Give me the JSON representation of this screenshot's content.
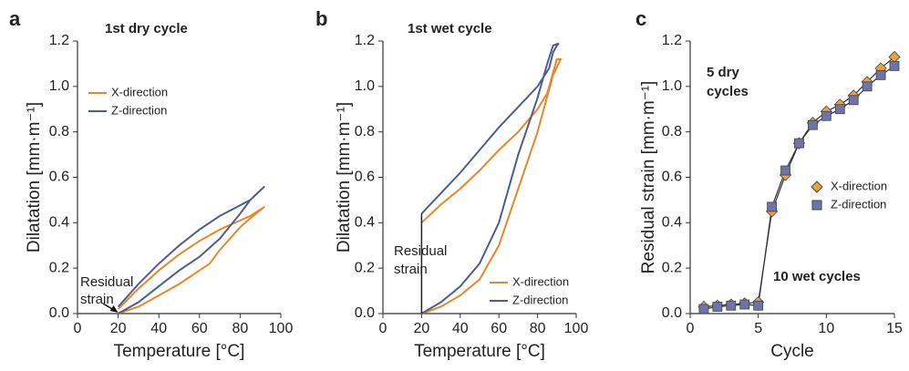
{
  "chart_data": [
    {
      "type": "line",
      "panel_label": "a",
      "annotations": [
        "1st dry cycle",
        "Residual",
        "strain"
      ],
      "xlabel": "Temperature [°C]",
      "ylabel": "Dilatation [mm·m⁻¹]",
      "xlim": [
        0,
        100
      ],
      "xticks": [
        0,
        20,
        40,
        60,
        80,
        100
      ],
      "ylim": [
        0,
        1.2
      ],
      "yticks": [
        {
          "value": 0,
          "label": "0.0"
        },
        0.2,
        0.4,
        0.6,
        0.8,
        {
          "value": 1,
          "label": "1.0"
        },
        1.2
      ],
      "legend": "upper left",
      "series": [
        {
          "name": "X-direction",
          "color": "#e8862a",
          "x": [
            20,
            30,
            40,
            50,
            60,
            65,
            70,
            80,
            85,
            92,
            85,
            70,
            60,
            50,
            40,
            30,
            20
          ],
          "values": [
            0,
            0.03,
            0.08,
            0.13,
            0.19,
            0.22,
            0.28,
            0.38,
            0.42,
            0.47,
            0.43,
            0.37,
            0.32,
            0.26,
            0.19,
            0.11,
            0.02
          ]
        },
        {
          "name": "Z-direction",
          "color": "#4f5b93",
          "x": [
            20,
            30,
            40,
            50,
            60,
            70,
            80,
            85,
            92,
            85,
            70,
            60,
            50,
            40,
            30,
            20
          ],
          "values": [
            0,
            0.05,
            0.12,
            0.19,
            0.25,
            0.33,
            0.44,
            0.5,
            0.56,
            0.5,
            0.43,
            0.37,
            0.3,
            0.22,
            0.13,
            0.03
          ]
        }
      ]
    },
    {
      "type": "line",
      "panel_label": "b",
      "annotations": [
        "1st wet cycle",
        "Residual",
        "strain"
      ],
      "xlabel": "Temperature [°C]",
      "ylabel": "Dilatation [mm·m⁻¹]",
      "xlim": [
        0,
        100
      ],
      "xticks": [
        0,
        20,
        40,
        60,
        80,
        100
      ],
      "ylim": [
        0,
        1.2
      ],
      "yticks": [
        {
          "value": 0,
          "label": "0.0"
        },
        0.2,
        0.4,
        0.6,
        0.8,
        {
          "value": 1,
          "label": "1.0"
        },
        1.2
      ],
      "legend": "lower right",
      "series": [
        {
          "name": "X-direction",
          "color": "#e8862a",
          "x": [
            20,
            30,
            40,
            50,
            60,
            70,
            80,
            88,
            92,
            90,
            85,
            80,
            70,
            60,
            50,
            40,
            30,
            20
          ],
          "values": [
            0,
            0.03,
            0.08,
            0.15,
            0.3,
            0.55,
            0.8,
            1.05,
            1.12,
            1.12,
            0.97,
            0.9,
            0.8,
            0.72,
            0.63,
            0.55,
            0.48,
            0.4
          ]
        },
        {
          "name": "Z-direction",
          "color": "#4f5b93",
          "x": [
            20,
            30,
            40,
            50,
            60,
            70,
            80,
            85,
            88,
            91,
            90,
            88,
            86,
            80,
            70,
            60,
            50,
            40,
            30,
            20
          ],
          "values": [
            0,
            0.05,
            0.12,
            0.22,
            0.4,
            0.7,
            0.95,
            1.1,
            1.18,
            1.19,
            1.18,
            1.15,
            1.08,
            1.0,
            0.91,
            0.82,
            0.72,
            0.62,
            0.53,
            0.44
          ]
        }
      ]
    },
    {
      "type": "line",
      "panel_label": "c",
      "annotations": [
        "5 dry",
        "cycles",
        "10 wet cycles"
      ],
      "xlabel": "Cycle",
      "ylabel": "Residual strain [mm·m⁻¹]",
      "xlim": [
        0,
        15
      ],
      "xticks": [
        0,
        5,
        10,
        15
      ],
      "ylim": [
        0,
        1.2
      ],
      "yticks": [
        {
          "value": 0,
          "label": "0.0"
        },
        0.2,
        0.4,
        0.6,
        0.8,
        {
          "value": 1,
          "label": "1.0"
        },
        1.2
      ],
      "legend": "center right",
      "series": [
        {
          "name": "X-direction",
          "color": "#e8a33a",
          "marker": "diamond",
          "x": [
            1,
            2,
            3,
            4,
            5,
            6,
            7,
            8,
            9,
            10,
            11,
            12,
            13,
            14,
            15
          ],
          "values": [
            0.03,
            0.035,
            0.04,
            0.045,
            0.05,
            0.45,
            0.61,
            0.75,
            0.84,
            0.89,
            0.92,
            0.96,
            1.02,
            1.08,
            1.13
          ]
        },
        {
          "name": "Z-direction",
          "color": "#6f73a8",
          "marker": "square",
          "x": [
            1,
            2,
            3,
            4,
            5,
            6,
            7,
            8,
            9,
            10,
            11,
            12,
            13,
            14,
            15
          ],
          "values": [
            0.02,
            0.03,
            0.035,
            0.04,
            0.035,
            0.47,
            0.63,
            0.75,
            0.83,
            0.87,
            0.9,
            0.94,
            1.0,
            1.05,
            1.09
          ]
        }
      ]
    }
  ]
}
